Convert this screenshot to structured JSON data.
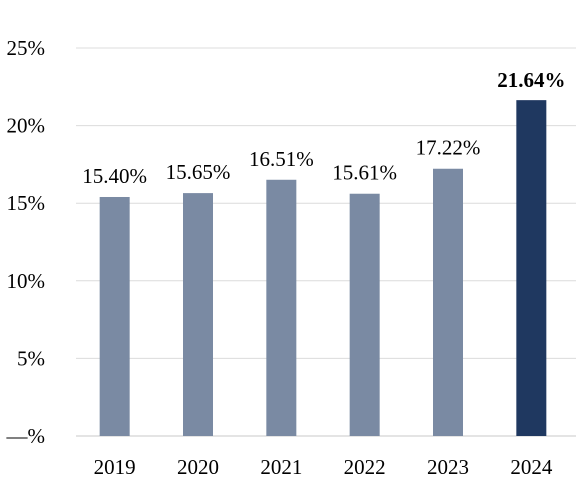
{
  "chart_data": {
    "type": "bar",
    "title": "",
    "xlabel": "",
    "ylabel": "",
    "categories": [
      "2019",
      "2020",
      "2021",
      "2022",
      "2023",
      "2024"
    ],
    "values": [
      15.4,
      15.65,
      16.51,
      15.61,
      17.22,
      21.64
    ],
    "data_labels": [
      "15.40%",
      "15.65%",
      "16.51%",
      "15.61%",
      "17.22%",
      "21.64%"
    ],
    "highlight_index": 5,
    "ylim": [
      0,
      25
    ],
    "y_ticks": [
      {
        "value": 0,
        "label": "—%"
      },
      {
        "value": 5,
        "label": "5%"
      },
      {
        "value": 10,
        "label": "10%"
      },
      {
        "value": 15,
        "label": "15%"
      },
      {
        "value": 20,
        "label": "20%"
      },
      {
        "value": 25,
        "label": "25%"
      }
    ],
    "grid": true,
    "legend": "none",
    "colors": {
      "bar": "#7a8aa3",
      "highlight": "#1f3860"
    }
  }
}
